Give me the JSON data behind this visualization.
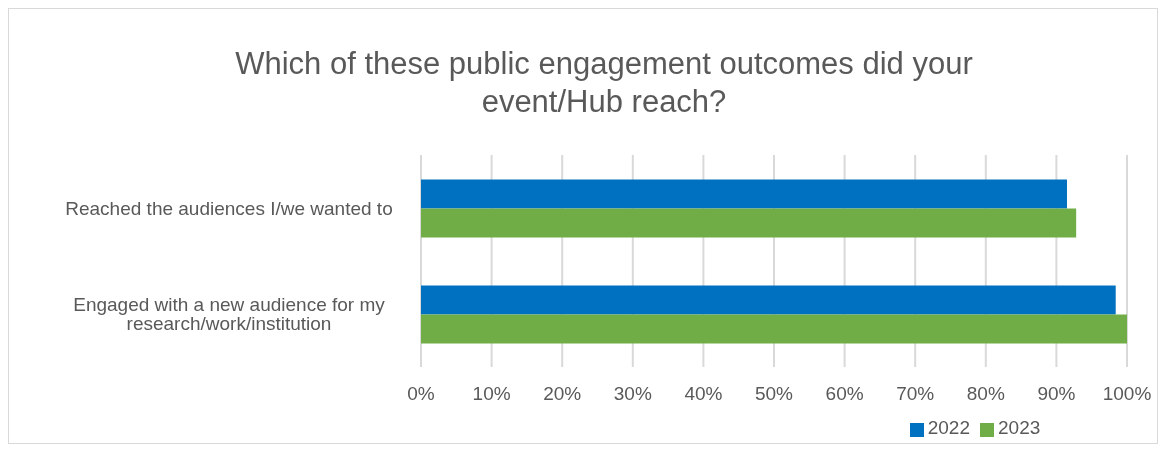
{
  "chart_data": {
    "type": "bar",
    "orientation": "horizontal",
    "title": "Which of these public engagement outcomes did your event/Hub reach?",
    "categories": [
      "Reached the audiences I/we wanted to",
      "Engaged with a new audience for my research/work/institution"
    ],
    "series": [
      {
        "name": "2022",
        "color": "#0070c0",
        "values": [
          91.5,
          98.4
        ]
      },
      {
        "name": "2023",
        "color": "#70ad47",
        "values": [
          92.8,
          100
        ]
      }
    ],
    "xlim": [
      0,
      100
    ],
    "xticks": [
      {
        "value": 0,
        "label": "0%"
      },
      {
        "value": 10,
        "label": "10%"
      },
      {
        "value": 20,
        "label": "20%"
      },
      {
        "value": 30,
        "label": "30%"
      },
      {
        "value": 40,
        "label": "40%"
      },
      {
        "value": 50,
        "label": "50%"
      },
      {
        "value": 60,
        "label": "60%"
      },
      {
        "value": 70,
        "label": "70%"
      },
      {
        "value": 80,
        "label": "80%"
      },
      {
        "value": 90,
        "label": "90%"
      },
      {
        "value": 100,
        "label": "100%"
      }
    ],
    "grid": "x",
    "legend": "bottom"
  }
}
